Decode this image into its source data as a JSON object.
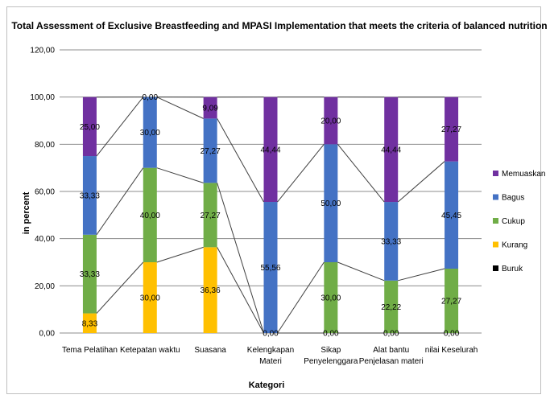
{
  "chart_data": {
    "type": "bar",
    "stacked": true,
    "title": "Total Assessment of Exclusive Breastfeeding and MPASI Implementation that meets the criteria of balanced nutrition",
    "xlabel": "Kategori",
    "ylabel": "in percent",
    "ylim": [
      0,
      120
    ],
    "yticks": [
      "0,00",
      "20,00",
      "40,00",
      "60,00",
      "80,00",
      "100,00",
      "120,00"
    ],
    "grid": true,
    "legend_position": "right",
    "categories": [
      [
        "Tema Pelatihan"
      ],
      [
        "Ketepatan waktu"
      ],
      [
        "Suasana"
      ],
      [
        "Kelengkapan",
        "Materi"
      ],
      [
        "Sikap",
        "Penyelenggara"
      ],
      [
        "Alat bantu",
        "Penjelasan materi"
      ],
      [
        "nilai Keselurah"
      ]
    ],
    "series": [
      {
        "name": "Buruk",
        "color": "#000000",
        "values": [
          0,
          0,
          0,
          0,
          0,
          0,
          0
        ],
        "labels": [
          "",
          "",
          "",
          "",
          "",
          "",
          ""
        ]
      },
      {
        "name": "Kurang",
        "color": "#FFC000",
        "values": [
          8.33,
          30.0,
          36.36,
          0,
          0,
          0,
          0
        ],
        "labels": [
          "8,33",
          "30,00",
          "36,36",
          "0,00",
          "0,00",
          "0,00",
          "0,00"
        ]
      },
      {
        "name": "Cukup",
        "color": "#70AD47",
        "values": [
          33.33,
          40.0,
          27.27,
          0,
          30.0,
          22.22,
          27.27
        ],
        "labels": [
          "33,33",
          "40,00",
          "27,27",
          "",
          "30,00",
          "22,22",
          "27,27"
        ]
      },
      {
        "name": "Bagus",
        "color": "#4472C4",
        "values": [
          33.33,
          30.0,
          27.27,
          55.56,
          50.0,
          33.33,
          45.45
        ],
        "labels": [
          "33,33",
          "30,00",
          "27,27",
          "55,56",
          "50,00",
          "33,33",
          "45,45"
        ]
      },
      {
        "name": "Memuaskan",
        "color": "#7030A0",
        "values": [
          25.0,
          0,
          9.09,
          44.44,
          20.0,
          44.44,
          27.27
        ],
        "labels": [
          "25,00",
          "0,00",
          "9,09",
          "44,44",
          "20,00",
          "44,44",
          "27,27"
        ]
      }
    ],
    "legend_order": [
      "Memuaskan",
      "Bagus",
      "Cukup",
      "Kurang",
      "Buruk"
    ]
  }
}
